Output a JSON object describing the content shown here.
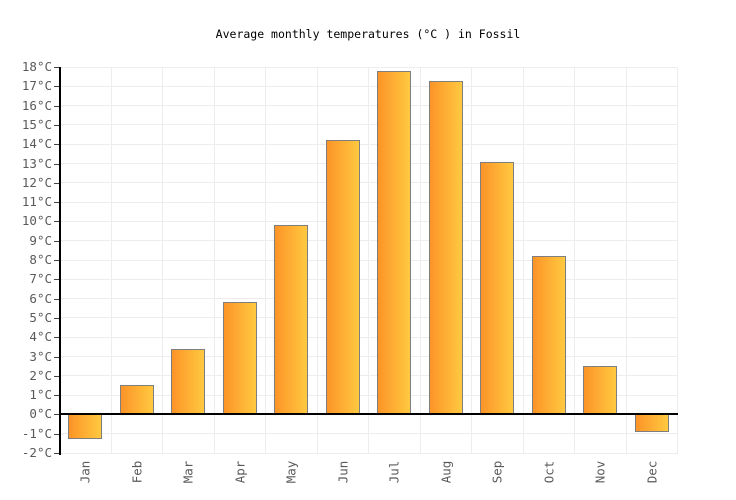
{
  "title": "Average monthly temperatures (°C ) in Fossil",
  "chart_data": {
    "type": "bar",
    "title": "Average monthly temperatures (°C ) in Fossil",
    "categories": [
      "Jan",
      "Feb",
      "Mar",
      "Apr",
      "May",
      "Jun",
      "Jul",
      "Aug",
      "Sep",
      "Oct",
      "Nov",
      "Dec"
    ],
    "values": [
      -1.3,
      1.5,
      3.4,
      5.8,
      9.8,
      14.2,
      17.8,
      17.3,
      13.1,
      8.2,
      2.5,
      -0.9
    ],
    "xlabel": "",
    "ylabel": "",
    "ylim": [
      -2,
      18
    ],
    "ytick_step": 1,
    "ytick_suffix": "°C",
    "grid": true,
    "legend": false,
    "colors": {
      "bar_gradient_left": "#fc9428",
      "bar_gradient_right": "#ffc940",
      "bar_border": "#7e7e7e",
      "gridline": "#ededed",
      "axis": "#000000",
      "tick_label": "#5a5a5a",
      "title_text": "#000000"
    }
  }
}
